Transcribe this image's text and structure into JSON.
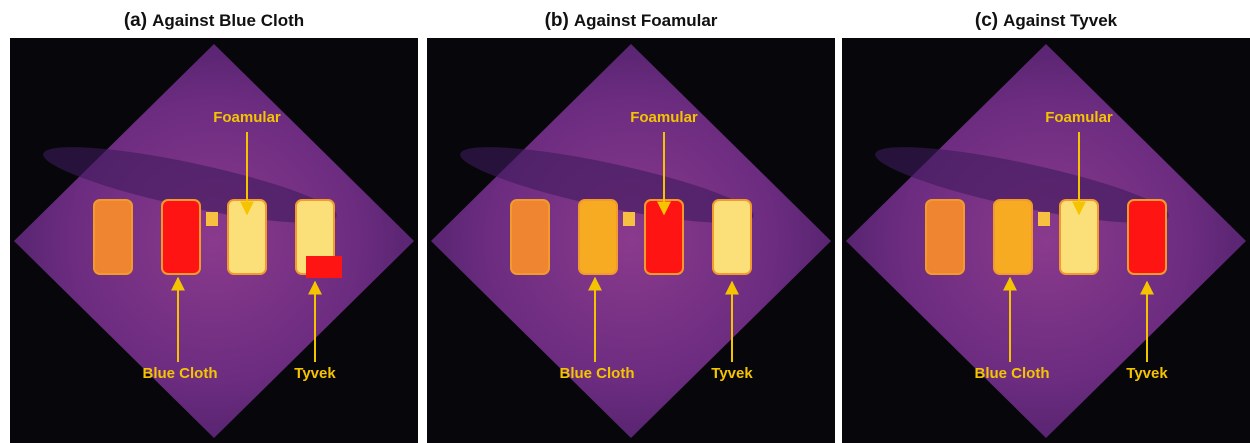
{
  "panels": [
    {
      "tag": "(a)",
      "title": "Against Blue Cloth",
      "labels": {
        "foamular": "Foamular",
        "blue_cloth": "Blue Cloth",
        "tyvek": "Tyvek"
      }
    },
    {
      "tag": "(b)",
      "title": "Against Foamular",
      "labels": {
        "foamular": "Foamular",
        "blue_cloth": "Blue Cloth",
        "tyvek": "Tyvek"
      }
    },
    {
      "tag": "(c)",
      "title": "Against Tyvek",
      "labels": {
        "foamular": "Foamular",
        "blue_cloth": "Blue Cloth",
        "tyvek": "Tyvek"
      }
    }
  ]
}
